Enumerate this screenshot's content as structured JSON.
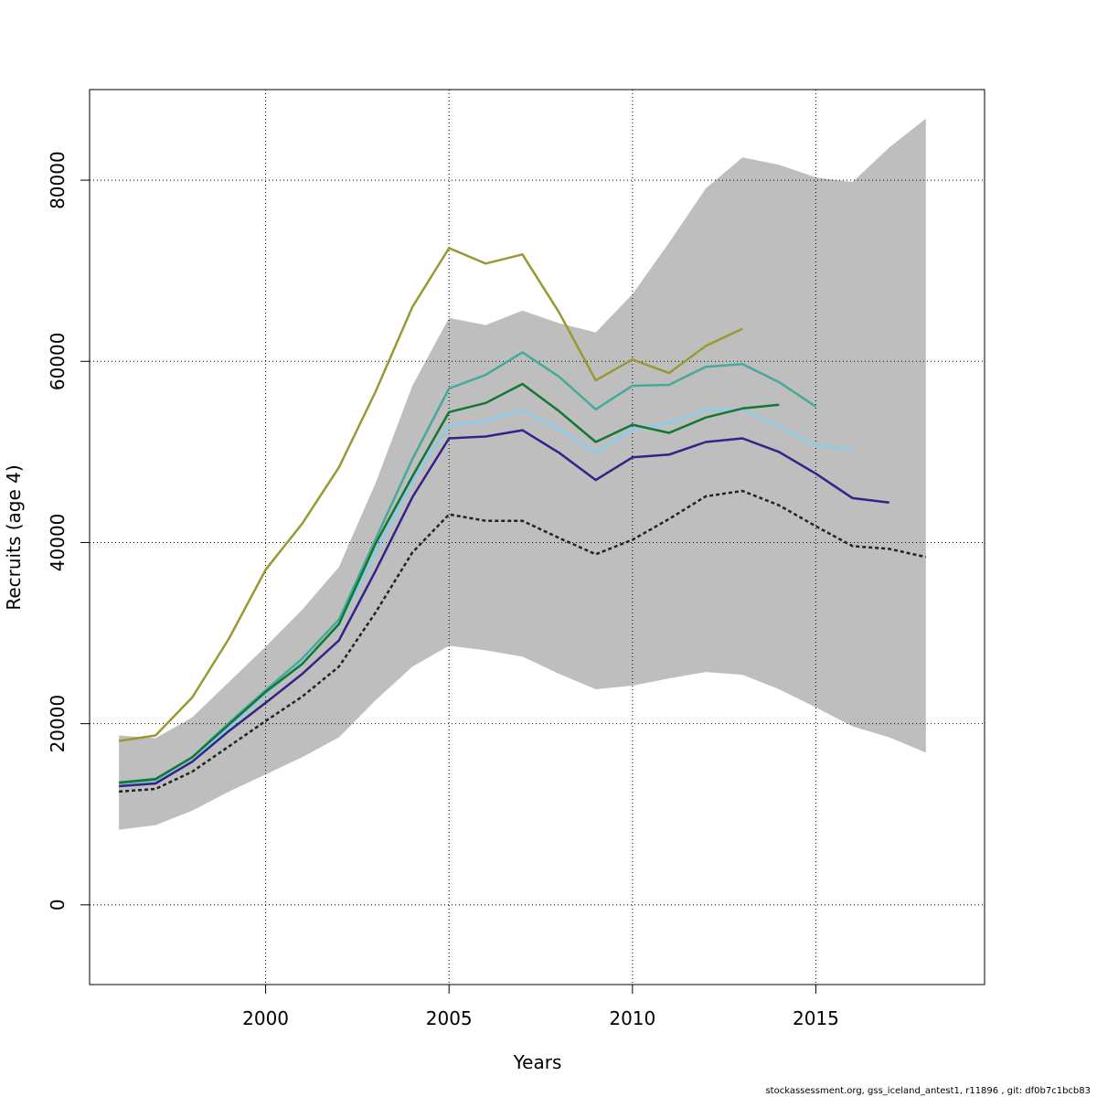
{
  "chart_data": {
    "type": "line",
    "title": "",
    "xlabel": "Years",
    "ylabel": "Recruits (age 4)",
    "xlim": [
      1995.2,
      2019.6
    ],
    "ylim": [
      -8800,
      90000
    ],
    "xticks": [
      2000,
      2005,
      2010,
      2015
    ],
    "yticks": [
      0,
      20000,
      40000,
      60000,
      80000
    ],
    "grid": true,
    "confidence_band": {
      "x": [
        1996,
        1997,
        1998,
        1999,
        2000,
        2001,
        2002,
        2003,
        2004,
        2005,
        2006,
        2007,
        2008,
        2009,
        2010,
        2011,
        2012,
        2013,
        2014,
        2015,
        2016,
        2017,
        2018
      ],
      "lower": [
        8300,
        8800,
        10400,
        12500,
        14400,
        16300,
        18500,
        22600,
        26300,
        28600,
        28100,
        27400,
        25500,
        23800,
        24200,
        25000,
        25700,
        25400,
        23800,
        21800,
        19700,
        18500,
        16800
      ],
      "upper": [
        18700,
        18400,
        20700,
        24600,
        28500,
        32600,
        37300,
        46600,
        57300,
        64800,
        64000,
        65600,
        64200,
        63200,
        67400,
        73100,
        79100,
        82500,
        81700,
        80300,
        79800,
        83600,
        86800
      ],
      "color": "#bebebe"
    },
    "series": [
      {
        "x": [
          1996,
          1997,
          1998,
          1999,
          2000,
          2001,
          2002,
          2003,
          2004,
          2005,
          2006,
          2007,
          2008,
          2009,
          2010,
          2011,
          2012,
          2013
        ],
        "values": [
          18100,
          18700,
          22900,
          29400,
          37000,
          42100,
          48300,
          56700,
          66000,
          72500,
          70800,
          71800,
          65400,
          57900,
          60200,
          58700,
          61700,
          63600
        ],
        "color": "#999933",
        "dash": false
      },
      {
        "x": [
          1996,
          1997,
          1998,
          1999,
          2000,
          2001,
          2002,
          2003,
          2004,
          2005,
          2006,
          2007,
          2008,
          2009,
          2010,
          2011,
          2012,
          2013,
          2014,
          2015
        ],
        "values": [
          13400,
          13800,
          16300,
          20100,
          23700,
          27200,
          31500,
          40400,
          49200,
          57000,
          58500,
          61000,
          58300,
          54700,
          57300,
          57400,
          59400,
          59700,
          57700,
          55000
        ],
        "color": "#44aa99",
        "dash": false
      },
      {
        "x": [
          1996,
          1997,
          1998,
          1999,
          2000,
          2001,
          2002,
          2003,
          2004,
          2005,
          2006,
          2007,
          2008,
          2009,
          2010,
          2011,
          2012,
          2013,
          2014,
          2015,
          2016
        ],
        "values": [
          13100,
          13500,
          15900,
          19600,
          23300,
          26800,
          30900,
          38900,
          46800,
          52900,
          53400,
          54600,
          52500,
          49900,
          52500,
          53200,
          54600,
          54700,
          52800,
          50700,
          50300
        ],
        "color": "#88ccee",
        "dash": false
      },
      {
        "x": [
          1996,
          1997,
          1998,
          1999,
          2000,
          2001,
          2002,
          2003,
          2004,
          2005,
          2006,
          2007,
          2008,
          2009,
          2010,
          2011,
          2012,
          2013,
          2014
        ],
        "values": [
          13500,
          13900,
          16300,
          19900,
          23500,
          26600,
          31000,
          39900,
          47300,
          54400,
          55400,
          57500,
          54500,
          51100,
          53000,
          52100,
          53800,
          54800,
          55200
        ],
        "color": "#117733",
        "dash": false
      },
      {
        "x": [
          1996,
          1997,
          1998,
          1999,
          2000,
          2001,
          2002,
          2003,
          2004,
          2005,
          2006,
          2007,
          2008,
          2009,
          2010,
          2011,
          2012,
          2013,
          2014,
          2015,
          2016,
          2017
        ],
        "values": [
          13100,
          13400,
          15800,
          19200,
          22300,
          25500,
          29200,
          36900,
          45000,
          51500,
          51700,
          52400,
          49900,
          46900,
          49400,
          49700,
          51100,
          51500,
          50000,
          47600,
          44900,
          44400
        ],
        "color": "#332288",
        "dash": false
      },
      {
        "x": [
          1996,
          1997,
          1998,
          1999,
          2000,
          2001,
          2002,
          2003,
          2004,
          2005,
          2006,
          2007,
          2008,
          2009,
          2010,
          2011,
          2012,
          2013,
          2014,
          2015,
          2016,
          2017,
          2018
        ],
        "values": [
          12500,
          12800,
          14700,
          17500,
          20300,
          23000,
          26300,
          32300,
          38900,
          43100,
          42400,
          42400,
          40500,
          38700,
          40300,
          42600,
          45100,
          45700,
          44100,
          41800,
          39600,
          39300,
          38400
        ],
        "color": "#222222",
        "dash": true
      }
    ]
  },
  "footer": "stockassessment.org, gss_iceland_antest1, r11896 , git: df0b7c1bcb83"
}
